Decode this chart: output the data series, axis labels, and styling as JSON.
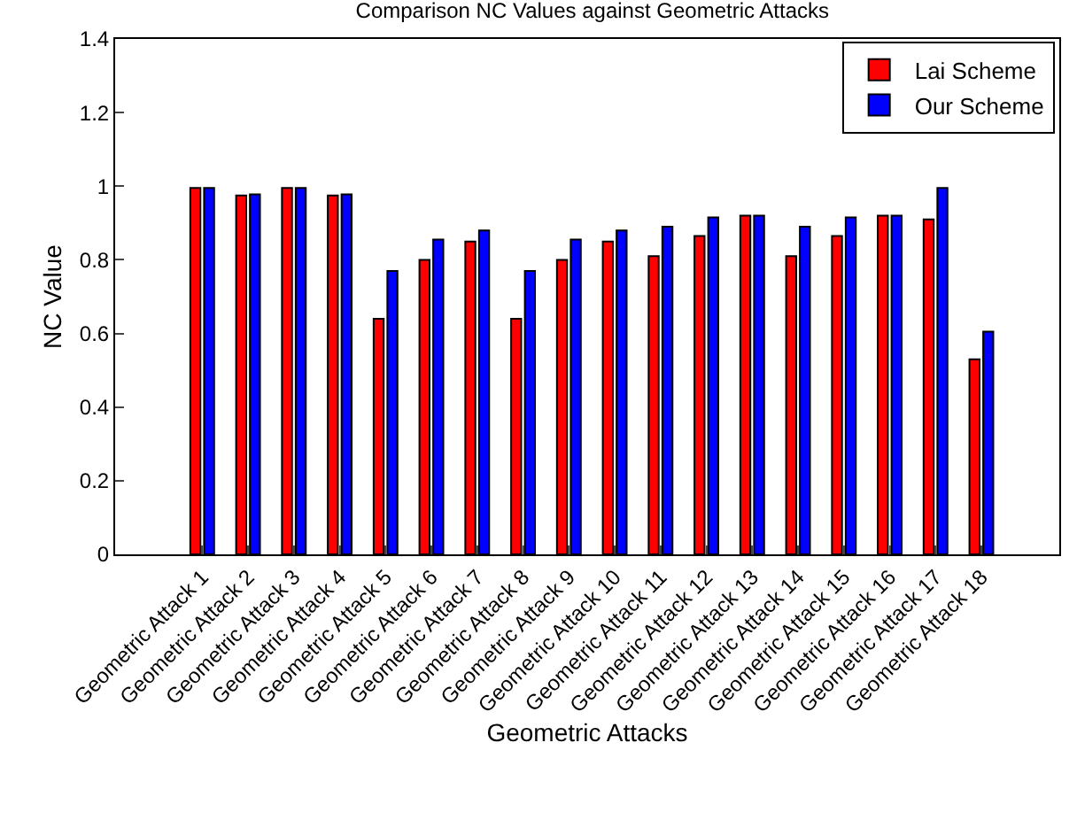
{
  "chart_data": {
    "type": "bar",
    "title": "Comparison NC Values against Geometric Attacks",
    "xlabel": "Geometric Attacks",
    "ylabel": "NC Value",
    "categories": [
      "Geometric Attack 1",
      "Geometric Attack 2",
      "Geometric Attack 3",
      "Geometric Attack 4",
      "Geometric Attack 5",
      "Geometric Attack 6",
      "Geometric Attack 7",
      "Geometric Attack 8",
      "Geometric Attack 9",
      "Geometric Attack 10",
      "Geometric Attack 11",
      "Geometric Attack 12",
      "Geometric Attack 13",
      "Geometric Attack 14",
      "Geometric Attack 15",
      "Geometric Attack 16",
      "Geometric Attack 17",
      "Geometric Attack 18"
    ],
    "series": [
      {
        "name": "Lai Scheme",
        "color": "#ff0000",
        "values": [
          0.995,
          0.975,
          0.995,
          0.975,
          0.64,
          0.8,
          0.85,
          0.64,
          0.8,
          0.85,
          0.81,
          0.865,
          0.92,
          0.81,
          0.865,
          0.92,
          0.91,
          0.53
        ]
      },
      {
        "name": "Our Scheme",
        "color": "#0000ff",
        "values": [
          0.995,
          0.978,
          0.995,
          0.978,
          0.77,
          0.855,
          0.88,
          0.77,
          0.855,
          0.88,
          0.89,
          0.915,
          0.92,
          0.89,
          0.915,
          0.92,
          0.995,
          0.605
        ]
      }
    ],
    "ylim": [
      0,
      1.4
    ],
    "yticks": [
      0,
      0.2,
      0.4,
      0.6,
      0.8,
      1,
      1.2,
      1.4
    ],
    "legend": "top right"
  }
}
